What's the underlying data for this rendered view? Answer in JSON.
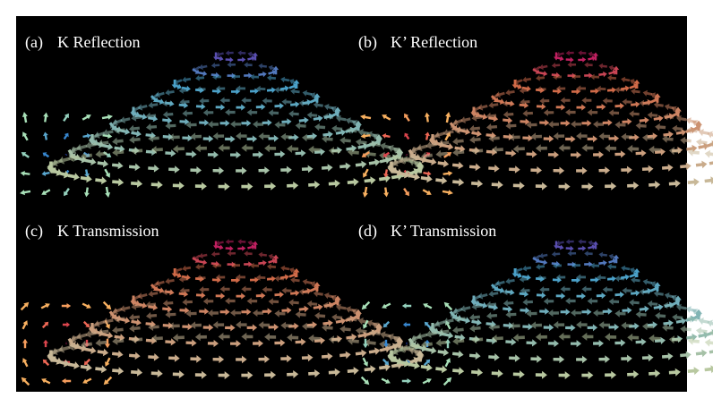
{
  "panels": [
    {
      "tag": "(a)",
      "title": "K Reflection"
    },
    {
      "tag": "(b)",
      "title": "K’ Reflection"
    },
    {
      "tag": "(c)",
      "title": "K Transmission"
    },
    {
      "tag": "(d)",
      "title": "K’ Transmission"
    }
  ]
}
